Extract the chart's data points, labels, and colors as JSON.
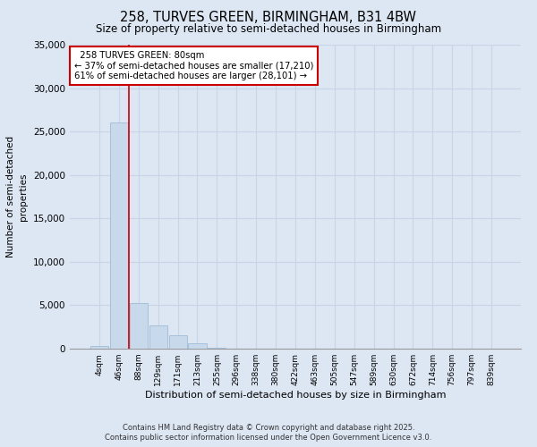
{
  "title": "258, TURVES GREEN, BIRMINGHAM, B31 4BW",
  "subtitle": "Size of property relative to semi-detached houses in Birmingham",
  "xlabel": "Distribution of semi-detached houses by size in Birmingham",
  "ylabel": "Number of semi-detached\nproperties",
  "categories": [
    "4sqm",
    "46sqm",
    "88sqm",
    "129sqm",
    "171sqm",
    "213sqm",
    "255sqm",
    "296sqm",
    "338sqm",
    "380sqm",
    "422sqm",
    "463sqm",
    "505sqm",
    "547sqm",
    "589sqm",
    "630sqm",
    "672sqm",
    "714sqm",
    "756sqm",
    "797sqm",
    "839sqm"
  ],
  "values": [
    300,
    26000,
    5200,
    2700,
    1500,
    600,
    100,
    20,
    0,
    0,
    0,
    0,
    0,
    0,
    0,
    0,
    0,
    0,
    0,
    0,
    0
  ],
  "bar_color": "#c8d9eb",
  "bar_edge_color": "#a0bcd8",
  "vline_color": "#cc0000",
  "vline_x": 1.5,
  "annotation_label": "258 TURVES GREEN: 80sqm",
  "annotation_smaller": "← 37% of semi-detached houses are smaller (17,210)",
  "annotation_larger": "61% of semi-detached houses are larger (28,101) →",
  "annotation_box_color": "#ffffff",
  "annotation_border_color": "#cc0000",
  "grid_color": "#c8d4e8",
  "bg_color": "#dde6f3",
  "ylim": [
    0,
    35000
  ],
  "yticks": [
    0,
    5000,
    10000,
    15000,
    20000,
    25000,
    30000,
    35000
  ],
  "footer1": "Contains HM Land Registry data © Crown copyright and database right 2025.",
  "footer2": "Contains public sector information licensed under the Open Government Licence v3.0."
}
